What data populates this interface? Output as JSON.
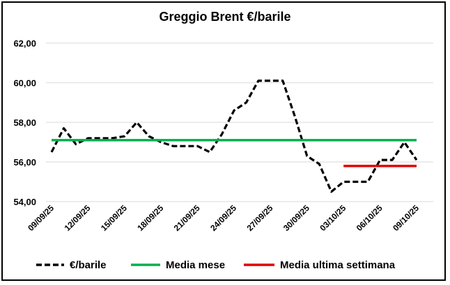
{
  "chart_data": {
    "type": "line",
    "title": "Greggio Brent €/barile",
    "ylim": [
      54,
      62
    ],
    "yticks": [
      "54,00",
      "56,00",
      "58,00",
      "60,00",
      "62,00"
    ],
    "ytick_values": [
      54,
      56,
      58,
      60,
      62
    ],
    "grid": "horizontal",
    "legend_position": "bottom",
    "categories": [
      "09/09/25",
      "10/09/25",
      "11/09/25",
      "12/09/25",
      "13/09/25",
      "14/09/25",
      "15/09/25",
      "16/09/25",
      "17/09/25",
      "18/09/25",
      "19/09/25",
      "20/09/25",
      "21/09/25",
      "22/09/25",
      "23/09/25",
      "24/09/25",
      "25/09/25",
      "26/09/25",
      "27/09/25",
      "28/09/25",
      "29/09/25",
      "30/09/25",
      "01/10/25",
      "02/10/25",
      "03/10/25",
      "04/10/25",
      "05/10/25",
      "06/10/25",
      "07/10/25",
      "08/10/25",
      "09/10/25"
    ],
    "xtick_labels": [
      "09/09/25",
      "12/09/25",
      "15/09/25",
      "18/09/25",
      "21/09/25",
      "24/09/25",
      "27/09/25",
      "30/09/25",
      "03/10/25",
      "06/10/25",
      "09/10/25"
    ],
    "series": [
      {
        "name": "€/barile",
        "style": "dashed",
        "color": "#000000",
        "values": [
          56.5,
          57.7,
          56.9,
          57.2,
          57.2,
          57.2,
          57.3,
          58.0,
          57.3,
          57.0,
          56.8,
          56.8,
          56.8,
          56.5,
          57.4,
          58.6,
          59.0,
          60.1,
          60.1,
          60.1,
          58.3,
          56.3,
          55.9,
          54.5,
          55.0,
          55.0,
          55.0,
          56.1,
          56.1,
          57.0,
          56.1
        ]
      },
      {
        "name": "Media mese",
        "style": "solid",
        "color": "#00B050",
        "x_range": [
          "09/09/25",
          "09/10/25"
        ],
        "value": 57.1
      },
      {
        "name": "Media ultima settimana",
        "style": "solid",
        "color": "#E00000",
        "x_range": [
          "03/10/25",
          "09/10/25"
        ],
        "value": 55.8
      }
    ]
  }
}
